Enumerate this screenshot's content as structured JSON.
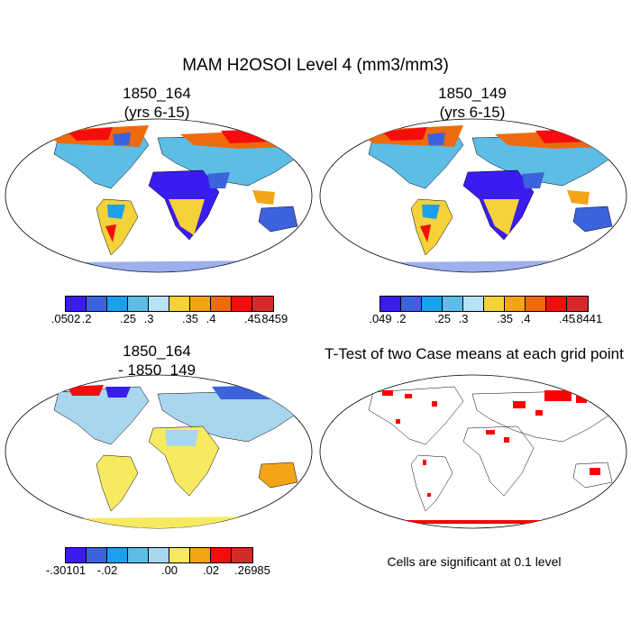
{
  "title": "MAM H2OSOI Level 4 (mm3/mm3)",
  "panels": {
    "top_left": {
      "title1": "1850_164",
      "title2": "(yrs 6-15)"
    },
    "top_right": {
      "title1": "1850_149",
      "title2": "(yrs 6-15)"
    },
    "bottom_left": {
      "title1": "1850_164",
      "title2": "- 1850_149"
    },
    "bottom_right": {
      "title": "T-Test of two Case means at each grid point"
    }
  },
  "colorbars": {
    "tl": {
      "colors": [
        "#3a1cf0",
        "#3c62dc",
        "#1aa0ee",
        "#5cbde6",
        "#b9e3f4",
        "#f5d13a",
        "#f5a417",
        "#ef6a0d",
        "#f50d0d",
        "#d52a2a"
      ],
      "labels": [
        ".0502",
        ".2",
        ".25",
        ".3",
        ".35",
        ".4",
        ".45",
        ".8459"
      ]
    },
    "tr": {
      "colors": [
        "#3a1cf0",
        "#3c62dc",
        "#1aa0ee",
        "#5cbde6",
        "#b9e3f4",
        "#f5d13a",
        "#f5a417",
        "#ef6a0d",
        "#f50d0d",
        "#d52a2a"
      ],
      "labels": [
        ".049",
        ".2",
        ".25",
        ".3",
        ".35",
        ".4",
        ".45",
        ".8441"
      ]
    },
    "bl": {
      "colors": [
        "#3a1cf0",
        "#3c62dc",
        "#1aa0ee",
        "#5cbde6",
        "#a8d6ee",
        "#f7ea60",
        "#f5a417",
        "#f50d0d",
        "#d52a2a"
      ],
      "labels": [
        "-.30101",
        "-.02",
        ".00",
        ".02",
        ".26985"
      ]
    }
  },
  "note": "Cells are significant at 0.1 level"
}
